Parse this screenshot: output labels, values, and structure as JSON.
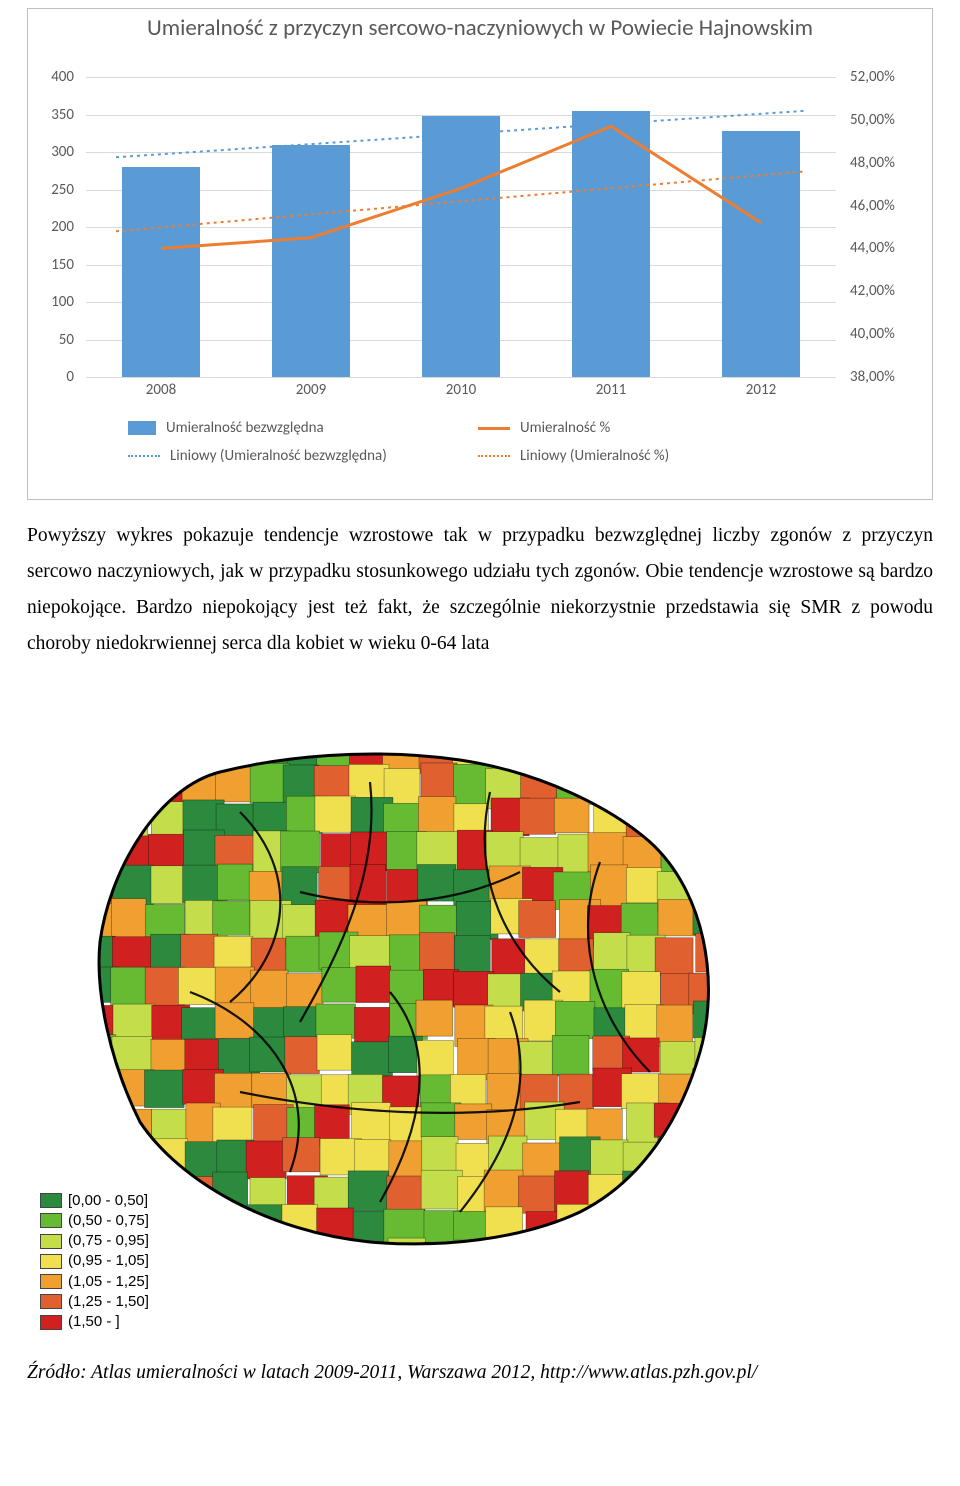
{
  "chart": {
    "type": "bar+line",
    "title": "Umieralność z przyczyn sercowo-naczyniowych w Powiecie Hajnowskim",
    "title_fontsize": 23,
    "title_color": "#595959",
    "background_color": "#ffffff",
    "border_color": "#bfbfbf",
    "grid_color": "#d9d9d9",
    "axis_label_color": "#595959",
    "axis_label_fontsize": 15,
    "categories": [
      "2008",
      "2009",
      "2010",
      "2011",
      "2012"
    ],
    "left_axis": {
      "min": 0,
      "max": 400,
      "step": 50,
      "ticks": [
        "0",
        "50",
        "100",
        "150",
        "200",
        "250",
        "300",
        "350",
        "400"
      ]
    },
    "right_axis": {
      "min": 38,
      "max": 52,
      "step": 2,
      "ticks": [
        "38,00%",
        "40,00%",
        "42,00%",
        "44,00%",
        "46,00%",
        "48,00%",
        "50,00%",
        "52,00%"
      ]
    },
    "bars": {
      "label": "Umieralność bezwzględna",
      "color": "#5b9bd5",
      "width_frac": 0.52,
      "values": [
        280,
        310,
        348,
        355,
        328
      ]
    },
    "line": {
      "label": "Umieralność %",
      "color": "#ed7d31",
      "width": 3,
      "values": [
        44.0,
        44.5,
        46.8,
        49.7,
        45.2
      ]
    },
    "trend_bars": {
      "label": "Liniowy (Umieralność bezwzględna)",
      "color": "#5b9bd5",
      "style": "dotted",
      "start": 293,
      "end": 355
    },
    "trend_line": {
      "label": "Liniowy (Umieralność %)",
      "color": "#ed7d31",
      "style": "dotted",
      "start": 44.8,
      "end": 47.6
    }
  },
  "body_text": "Powyższy wykres pokazuje tendencje wzrostowe tak w przypadku bezwzględnej liczby zgonów z przyczyn sercowo naczyniowych, jak w przypadku stosunkowego udziału tych zgonów. Obie tendencje wzrostowe są bardzo niepokojące. Bardzo niepokojący jest też fakt, że szczególnie niekorzystnie przedstawia się SMR z powodu choroby niedokrwiennej serca dla kobiet w wieku 0-64 lata",
  "map": {
    "type": "choropleth",
    "legend": [
      {
        "color": "#2b8a3e",
        "label": "[0,00 - 0,50]"
      },
      {
        "color": "#66bb33",
        "label": "(0,50 - 0,75]"
      },
      {
        "color": "#c4dd4b",
        "label": "(0,75 - 0,95]"
      },
      {
        "color": "#f0e050",
        "label": "(0,95 - 1,05]"
      },
      {
        "color": "#f0a030",
        "label": "(1,05 - 1,25]"
      },
      {
        "color": "#e06030",
        "label": "(1,25 - 1,50]"
      },
      {
        "color": "#d02020",
        "label": "(1,50 -       ]"
      }
    ],
    "outline_color": "#000000",
    "background_color": "#ffffff"
  },
  "citation": "Źródło: Atlas umieralności w latach 2009-2011, Warszawa 2012, http://www.atlas.pzh.gov.pl/"
}
